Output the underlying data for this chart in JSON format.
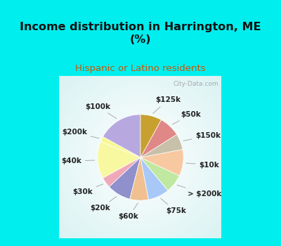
{
  "title": "Income distribution in Harrington, ME\n(%)",
  "subtitle": "Hispanic or Latino residents",
  "watermark": "City-Data.com",
  "bg_cyan": "#00EEEE",
  "title_color": "#111111",
  "subtitle_color": "#cc5500",
  "labels": [
    "$100k",
    "$200k",
    "$40k",
    "$30k",
    "$20k",
    "$60k",
    "$75k",
    "> $200k",
    "$10k",
    "$150k",
    "$50k",
    "$125k"
  ],
  "values": [
    17,
    2,
    14,
    4,
    9,
    7,
    8,
    7,
    10,
    6,
    8,
    8
  ],
  "colors": [
    "#b8a8e0",
    "#f8f890",
    "#f8f8a0",
    "#f0a8b8",
    "#9090cc",
    "#f0c090",
    "#a8c8f8",
    "#c0e8a0",
    "#f8c8a0",
    "#c8c0a8",
    "#e08888",
    "#c8a030"
  ],
  "label_fontsize": 7.5,
  "title_fontsize": 11.5,
  "subtitle_fontsize": 9.5,
  "startangle": 90
}
